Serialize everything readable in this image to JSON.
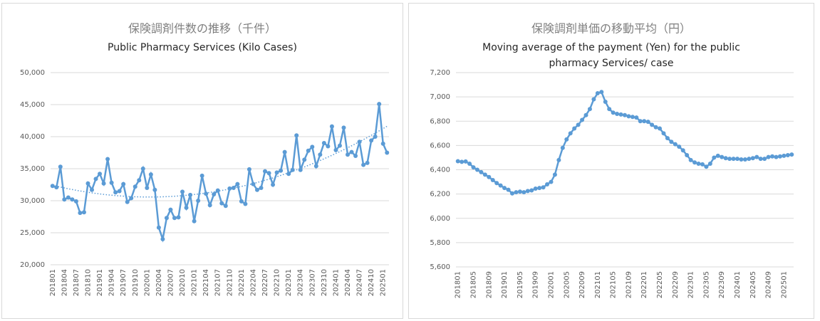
{
  "chart_data": [
    {
      "type": "line",
      "title": "保険調剤件数の推移（千件）",
      "subtitle": [
        "Public Pharmacy Services (Kilo Cases)"
      ],
      "categories": [
        "201801",
        null,
        null,
        "201804",
        null,
        null,
        "201807",
        null,
        null,
        "201810",
        null,
        null,
        "201901",
        null,
        null,
        "201904",
        null,
        null,
        "201907",
        null,
        null,
        "201910",
        null,
        null,
        "202001",
        null,
        null,
        "202004",
        null,
        null,
        "202007",
        null,
        null,
        "202010",
        null,
        null,
        "202101",
        null,
        null,
        "202104",
        null,
        null,
        "202107",
        null,
        null,
        "202110",
        null,
        null,
        "202201",
        null,
        null,
        "202204",
        null,
        null,
        "202207",
        null,
        null,
        "202210",
        null,
        null,
        "202301",
        null,
        null,
        "202304",
        null,
        null,
        "202307",
        null,
        null,
        "202310",
        null,
        null,
        "202401",
        null,
        null,
        "202404",
        null,
        null,
        "202407",
        null,
        null,
        "202410",
        null,
        null,
        "202501",
        null
      ],
      "values": [
        32300,
        32100,
        35300,
        30200,
        30500,
        30200,
        29900,
        28100,
        28200,
        32700,
        31700,
        33400,
        34200,
        32700,
        36500,
        32800,
        31300,
        31500,
        32600,
        29800,
        30400,
        32200,
        33200,
        35000,
        32000,
        34100,
        31700,
        25800,
        24000,
        27300,
        28600,
        27300,
        27400,
        31400,
        28900,
        30900,
        26800,
        30000,
        33900,
        31100,
        29300,
        31000,
        31600,
        29600,
        29200,
        31900,
        32000,
        32600,
        29900,
        29500,
        34900,
        32600,
        31700,
        32000,
        34600,
        34300,
        32500,
        34400,
        34700,
        37600,
        34200,
        34800,
        40200,
        34800,
        36400,
        37800,
        38400,
        35400,
        37200,
        39000,
        38500,
        41600,
        37900,
        38600,
        41400,
        37200,
        37600,
        37000,
        39200,
        35600,
        35900,
        39400,
        40000,
        45100,
        38900,
        37500
      ],
      "color": "#5b9bd5",
      "ylim": [
        20000,
        50000
      ],
      "yticks": [
        {
          "value": 20000,
          "label": "20,000"
        },
        {
          "value": 25000,
          "label": "25,000"
        },
        {
          "value": 30000,
          "label": "30,000"
        },
        {
          "value": 35000,
          "label": "35,000"
        },
        {
          "value": 40000,
          "label": "40,000"
        },
        {
          "value": 45000,
          "label": "45,000"
        },
        {
          "value": 50000,
          "label": "50,000"
        }
      ],
      "grid": true,
      "trendline": {
        "order": 2,
        "style": "dotted"
      }
    },
    {
      "type": "line",
      "title": "保険調剤単価の移動平均（円）",
      "subtitle": [
        "Moving average of the payment (Yen) for the public",
        "pharmacy Services/ case"
      ],
      "categories": [
        "201801",
        null,
        null,
        null,
        "201805",
        null,
        null,
        null,
        "201809",
        null,
        null,
        null,
        "201901",
        null,
        null,
        null,
        "201905",
        null,
        null,
        null,
        "201909",
        null,
        null,
        null,
        "202001",
        null,
        null,
        null,
        "202005",
        null,
        null,
        null,
        "202009",
        null,
        null,
        null,
        "202101",
        null,
        null,
        null,
        "202105",
        null,
        null,
        null,
        "202109",
        null,
        null,
        null,
        "202201",
        null,
        null,
        null,
        "202205",
        null,
        null,
        null,
        "202209",
        null,
        null,
        null,
        "202301",
        null,
        null,
        null,
        "202305",
        null,
        null,
        null,
        "202309",
        null,
        null,
        null,
        "202401",
        null,
        null,
        null,
        "202405",
        null,
        null,
        null,
        "202409",
        null,
        null,
        null,
        "202501",
        null,
        null
      ],
      "values": [
        6470,
        6465,
        6468,
        6450,
        6420,
        6400,
        6380,
        6360,
        6340,
        6315,
        6290,
        6270,
        6250,
        6235,
        6205,
        6215,
        6220,
        6215,
        6225,
        6230,
        6245,
        6250,
        6255,
        6280,
        6300,
        6360,
        6480,
        6580,
        6650,
        6700,
        6740,
        6770,
        6810,
        6850,
        6900,
        6980,
        7030,
        7040,
        6960,
        6900,
        6870,
        6860,
        6855,
        6850,
        6840,
        6835,
        6830,
        6800,
        6800,
        6795,
        6770,
        6750,
        6740,
        6700,
        6660,
        6630,
        6610,
        6590,
        6560,
        6520,
        6480,
        6460,
        6450,
        6445,
        6425,
        6450,
        6500,
        6515,
        6505,
        6495,
        6490,
        6490,
        6490,
        6485,
        6485,
        6490,
        6495,
        6505,
        6490,
        6490,
        6505,
        6510,
        6505,
        6510,
        6515,
        6520,
        6525
      ],
      "color": "#5b9bd5",
      "ylim": [
        5600,
        7200
      ],
      "yticks": [
        {
          "value": 5600,
          "label": "5,600"
        },
        {
          "value": 5800,
          "label": "5,800"
        },
        {
          "value": 6000,
          "label": "6,000"
        },
        {
          "value": 6200,
          "label": "6,200"
        },
        {
          "value": 6400,
          "label": "6,400"
        },
        {
          "value": 6600,
          "label": "6,600"
        },
        {
          "value": 6800,
          "label": "6,800"
        },
        {
          "value": 7000,
          "label": "7,000"
        },
        {
          "value": 7200,
          "label": "7,200"
        }
      ],
      "grid": true
    }
  ]
}
